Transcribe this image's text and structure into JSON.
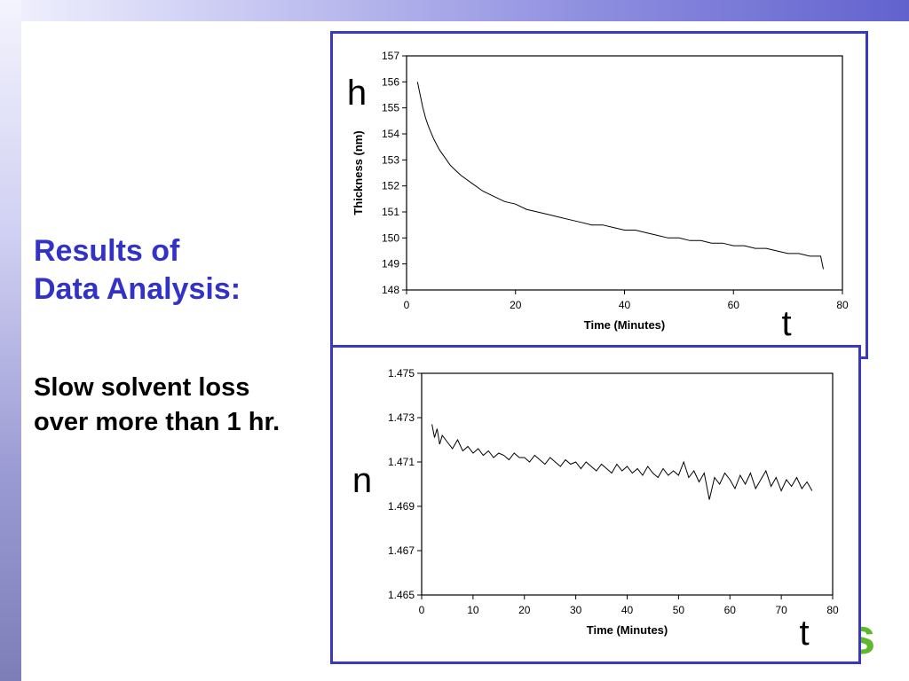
{
  "slide": {
    "title": "Results of\nData Analysis:",
    "body": "Slow solvent loss\nover more than 1 hr.",
    "logo_fragment": "s"
  },
  "colors": {
    "title": "#3232c6",
    "frame_border": "#3838c0",
    "logo": "#5fb82b"
  },
  "chart_data": [
    {
      "type": "line",
      "title": "",
      "xlabel": "Time (Minutes)",
      "ylabel": "Thickness (nm)",
      "xlim": [
        0,
        80
      ],
      "ylim": [
        148,
        157
      ],
      "xticks": [
        0,
        20,
        40,
        60,
        80
      ],
      "yticks": [
        148,
        149,
        150,
        151,
        152,
        153,
        154,
        155,
        156,
        157
      ],
      "y_symbol": "h",
      "x_symbol": "t",
      "grid": false,
      "series": [
        {
          "x": [
            2,
            2.5,
            3,
            3.5,
            4,
            5,
            6,
            7,
            8,
            9,
            10,
            12,
            14,
            16,
            18,
            20,
            22,
            24,
            26,
            28,
            30,
            32,
            34,
            36,
            38,
            40,
            42,
            44,
            46,
            48,
            50,
            52,
            54,
            56,
            58,
            60,
            62,
            64,
            66,
            68,
            70,
            72,
            74,
            76,
            76.5
          ],
          "y": [
            156.0,
            155.5,
            155.0,
            154.6,
            154.3,
            153.8,
            153.4,
            153.1,
            152.8,
            152.6,
            152.4,
            152.1,
            151.8,
            151.6,
            151.4,
            151.3,
            151.1,
            151.0,
            150.9,
            150.8,
            150.7,
            150.6,
            150.5,
            150.5,
            150.4,
            150.3,
            150.3,
            150.2,
            150.1,
            150.0,
            150.0,
            149.9,
            149.9,
            149.8,
            149.8,
            149.7,
            149.7,
            149.6,
            149.6,
            149.5,
            149.4,
            149.4,
            149.3,
            149.3,
            148.8
          ]
        }
      ]
    },
    {
      "type": "line",
      "title": "",
      "xlabel": "Time (Minutes)",
      "ylabel": "",
      "xlim": [
        0,
        80
      ],
      "ylim": [
        1.465,
        1.475
      ],
      "xticks": [
        0,
        10,
        20,
        30,
        40,
        50,
        60,
        70,
        80
      ],
      "yticks": [
        1.465,
        1.467,
        1.469,
        1.471,
        1.473,
        1.475
      ],
      "y_symbol": "n",
      "x_symbol": "t",
      "grid": false,
      "series": [
        {
          "x": [
            2,
            2.5,
            3,
            3.5,
            4,
            5,
            6,
            7,
            8,
            9,
            10,
            11,
            12,
            13,
            14,
            15,
            16,
            17,
            18,
            19,
            20,
            21,
            22,
            23,
            24,
            25,
            26,
            27,
            28,
            29,
            30,
            31,
            32,
            33,
            34,
            35,
            36,
            37,
            38,
            39,
            40,
            41,
            42,
            43,
            44,
            45,
            46,
            47,
            48,
            49,
            50,
            51,
            52,
            53,
            54,
            55,
            56,
            57,
            58,
            59,
            60,
            61,
            62,
            63,
            64,
            65,
            66,
            67,
            68,
            69,
            70,
            71,
            72,
            73,
            74,
            75,
            76
          ],
          "y": [
            1.4727,
            1.4721,
            1.4725,
            1.4718,
            1.4722,
            1.4719,
            1.4716,
            1.472,
            1.4715,
            1.4717,
            1.4714,
            1.4716,
            1.4713,
            1.4715,
            1.4712,
            1.4714,
            1.4713,
            1.4711,
            1.4714,
            1.4712,
            1.4712,
            1.471,
            1.4713,
            1.4711,
            1.4709,
            1.4712,
            1.471,
            1.4708,
            1.4711,
            1.4709,
            1.471,
            1.4707,
            1.471,
            1.4708,
            1.4706,
            1.4709,
            1.4707,
            1.4705,
            1.4709,
            1.4706,
            1.4708,
            1.4705,
            1.4707,
            1.4704,
            1.4708,
            1.4705,
            1.4703,
            1.4707,
            1.4704,
            1.4706,
            1.4704,
            1.471,
            1.4703,
            1.4706,
            1.4701,
            1.4705,
            1.4693,
            1.4703,
            1.47,
            1.4705,
            1.4702,
            1.4698,
            1.4704,
            1.47,
            1.4705,
            1.4698,
            1.4702,
            1.4706,
            1.4699,
            1.4703,
            1.4697,
            1.4702,
            1.4699,
            1.4703,
            1.4698,
            1.4701,
            1.4697
          ]
        }
      ]
    }
  ]
}
